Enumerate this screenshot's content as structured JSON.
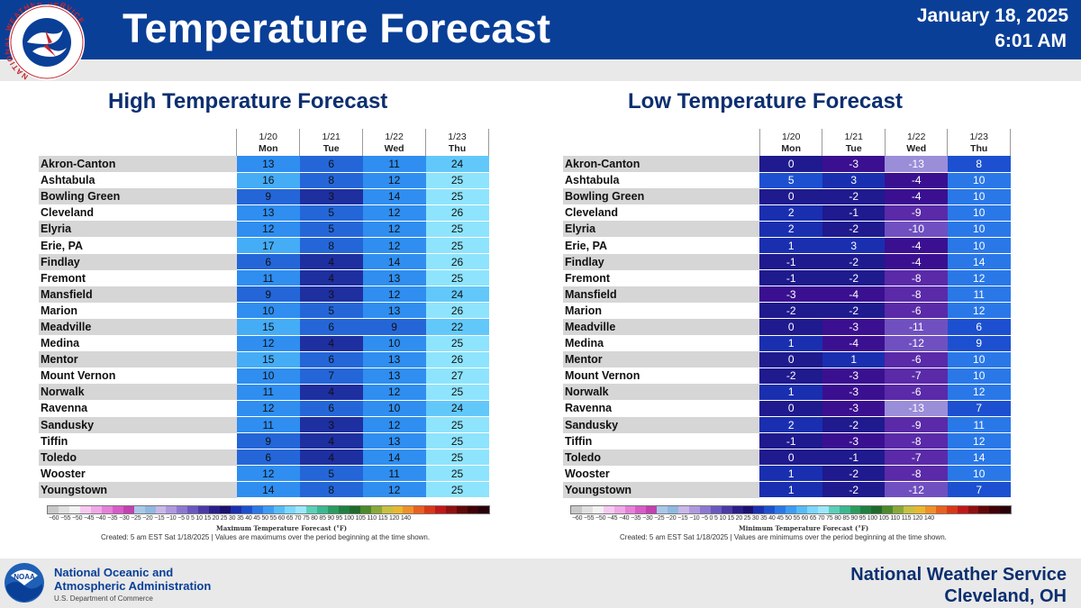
{
  "header": {
    "title": "Temperature Forecast",
    "date": "January 18, 2025",
    "time": "6:01 AM",
    "logo_text": "NATIONAL WEATHER SERVICE"
  },
  "chart_data": [
    {
      "type": "table",
      "title": "High Temperature Forecast",
      "columns": [
        {
          "date": "1/20",
          "day": "Mon"
        },
        {
          "date": "1/21",
          "day": "Tue"
        },
        {
          "date": "1/22",
          "day": "Wed"
        },
        {
          "date": "1/23",
          "day": "Thu"
        }
      ],
      "rows": [
        {
          "name": "Akron-Canton",
          "values": [
            13,
            6,
            11,
            24
          ]
        },
        {
          "name": "Ashtabula",
          "values": [
            16,
            8,
            12,
            25
          ]
        },
        {
          "name": "Bowling Green",
          "values": [
            9,
            3,
            14,
            25
          ]
        },
        {
          "name": "Cleveland",
          "values": [
            13,
            5,
            12,
            26
          ]
        },
        {
          "name": "Elyria",
          "values": [
            12,
            5,
            12,
            25
          ]
        },
        {
          "name": "Erie, PA",
          "values": [
            17,
            8,
            12,
            25
          ]
        },
        {
          "name": "Findlay",
          "values": [
            6,
            4,
            14,
            26
          ]
        },
        {
          "name": "Fremont",
          "values": [
            11,
            4,
            13,
            25
          ]
        },
        {
          "name": "Mansfield",
          "values": [
            9,
            3,
            12,
            24
          ]
        },
        {
          "name": "Marion",
          "values": [
            10,
            5,
            13,
            26
          ]
        },
        {
          "name": "Meadville",
          "values": [
            15,
            6,
            9,
            22
          ]
        },
        {
          "name": "Medina",
          "values": [
            12,
            4,
            10,
            25
          ]
        },
        {
          "name": "Mentor",
          "values": [
            15,
            6,
            13,
            26
          ]
        },
        {
          "name": "Mount Vernon",
          "values": [
            10,
            7,
            13,
            27
          ]
        },
        {
          "name": "Norwalk",
          "values": [
            11,
            4,
            12,
            25
          ]
        },
        {
          "name": "Ravenna",
          "values": [
            12,
            6,
            10,
            24
          ]
        },
        {
          "name": "Sandusky",
          "values": [
            11,
            3,
            12,
            25
          ]
        },
        {
          "name": "Tiffin",
          "values": [
            9,
            4,
            13,
            25
          ]
        },
        {
          "name": "Toledo",
          "values": [
            6,
            4,
            14,
            25
          ]
        },
        {
          "name": "Wooster",
          "values": [
            12,
            5,
            11,
            25
          ]
        },
        {
          "name": "Youngstown",
          "values": [
            14,
            8,
            12,
            25
          ]
        }
      ],
      "scale_label": "Maximum Temperature Forecast (°F)",
      "footnote": "Created: 5 am EST Sat 1/18/2025  |  Values are maximums over the period beginning at the time shown."
    },
    {
      "type": "table",
      "title": "Low Temperature Forecast",
      "columns": [
        {
          "date": "1/20",
          "day": "Mon"
        },
        {
          "date": "1/21",
          "day": "Tue"
        },
        {
          "date": "1/22",
          "day": "Wed"
        },
        {
          "date": "1/23",
          "day": "Thu"
        }
      ],
      "rows": [
        {
          "name": "Akron-Canton",
          "values": [
            0,
            -3,
            -13,
            8
          ]
        },
        {
          "name": "Ashtabula",
          "values": [
            5,
            3,
            -4,
            10
          ]
        },
        {
          "name": "Bowling Green",
          "values": [
            0,
            -2,
            -4,
            10
          ]
        },
        {
          "name": "Cleveland",
          "values": [
            2,
            -1,
            -9,
            10
          ]
        },
        {
          "name": "Elyria",
          "values": [
            2,
            -2,
            -10,
            10
          ]
        },
        {
          "name": "Erie, PA",
          "values": [
            1,
            3,
            -4,
            10
          ]
        },
        {
          "name": "Findlay",
          "values": [
            -1,
            -2,
            -4,
            14
          ]
        },
        {
          "name": "Fremont",
          "values": [
            -1,
            -2,
            -8,
            12
          ]
        },
        {
          "name": "Mansfield",
          "values": [
            -3,
            -4,
            -8,
            11
          ]
        },
        {
          "name": "Marion",
          "values": [
            -2,
            -2,
            -6,
            12
          ]
        },
        {
          "name": "Meadville",
          "values": [
            0,
            -3,
            -11,
            6
          ]
        },
        {
          "name": "Medina",
          "values": [
            1,
            -4,
            -12,
            9
          ]
        },
        {
          "name": "Mentor",
          "values": [
            0,
            1,
            -6,
            10
          ]
        },
        {
          "name": "Mount Vernon",
          "values": [
            -2,
            -3,
            -7,
            10
          ]
        },
        {
          "name": "Norwalk",
          "values": [
            1,
            -3,
            -6,
            12
          ]
        },
        {
          "name": "Ravenna",
          "values": [
            0,
            -3,
            -13,
            7
          ]
        },
        {
          "name": "Sandusky",
          "values": [
            2,
            -2,
            -9,
            11
          ]
        },
        {
          "name": "Tiffin",
          "values": [
            -1,
            -3,
            -8,
            12
          ]
        },
        {
          "name": "Toledo",
          "values": [
            0,
            -1,
            -7,
            14
          ]
        },
        {
          "name": "Wooster",
          "values": [
            1,
            -2,
            -8,
            10
          ]
        },
        {
          "name": "Youngstown",
          "values": [
            1,
            -2,
            -12,
            7
          ]
        }
      ],
      "scale_label": "Minimum Temperature Forecast (°F)",
      "footnote": "Created: 5 am EST Sat 1/18/2025  |  Values are minimums over the period beginning at the time shown."
    }
  ],
  "scale_ticks": "−60 −55 −50 −45 −40 −35 −30 −25 −20 −15 −10  −5   0   5  10  15  20  25  30  35  40  45  50  55  60  65  70  75  80  85  90  95 100 105 110 115 120 140",
  "scale_colors": [
    "#c8c8c8",
    "#e0e0e0",
    "#f2f2f2",
    "#f7c9f0",
    "#f0a8e6",
    "#e680d8",
    "#d85bc8",
    "#c240b0",
    "#a8c8e8",
    "#90b8e0",
    "#c8b8e8",
    "#b098e0",
    "#8c78d0",
    "#6a58c0",
    "#4a3aa8",
    "#2a1e8a",
    "#1a1070",
    "#1a2fb0",
    "#1c50d0",
    "#2a78e8",
    "#3c9cf4",
    "#56bcf8",
    "#7ad8fc",
    "#9ae8fc",
    "#5ad0b8",
    "#3ab890",
    "#2a9c60",
    "#1e8040",
    "#1e6a2a",
    "#4a8a2a",
    "#8aa838",
    "#c8c040",
    "#e8b830",
    "#f09028",
    "#e86020",
    "#d83818",
    "#c01818",
    "#901010",
    "#600808",
    "#400008",
    "#28000a"
  ],
  "footer": {
    "noaa_name_line1": "National Oceanic and",
    "noaa_name_line2": "Atmospheric Administration",
    "noaa_dept": "U.S. Department of Commerce",
    "noaa_logo_text": "NOAA",
    "office_line1": "National Weather Service",
    "office_line2": "Cleveland, OH"
  }
}
